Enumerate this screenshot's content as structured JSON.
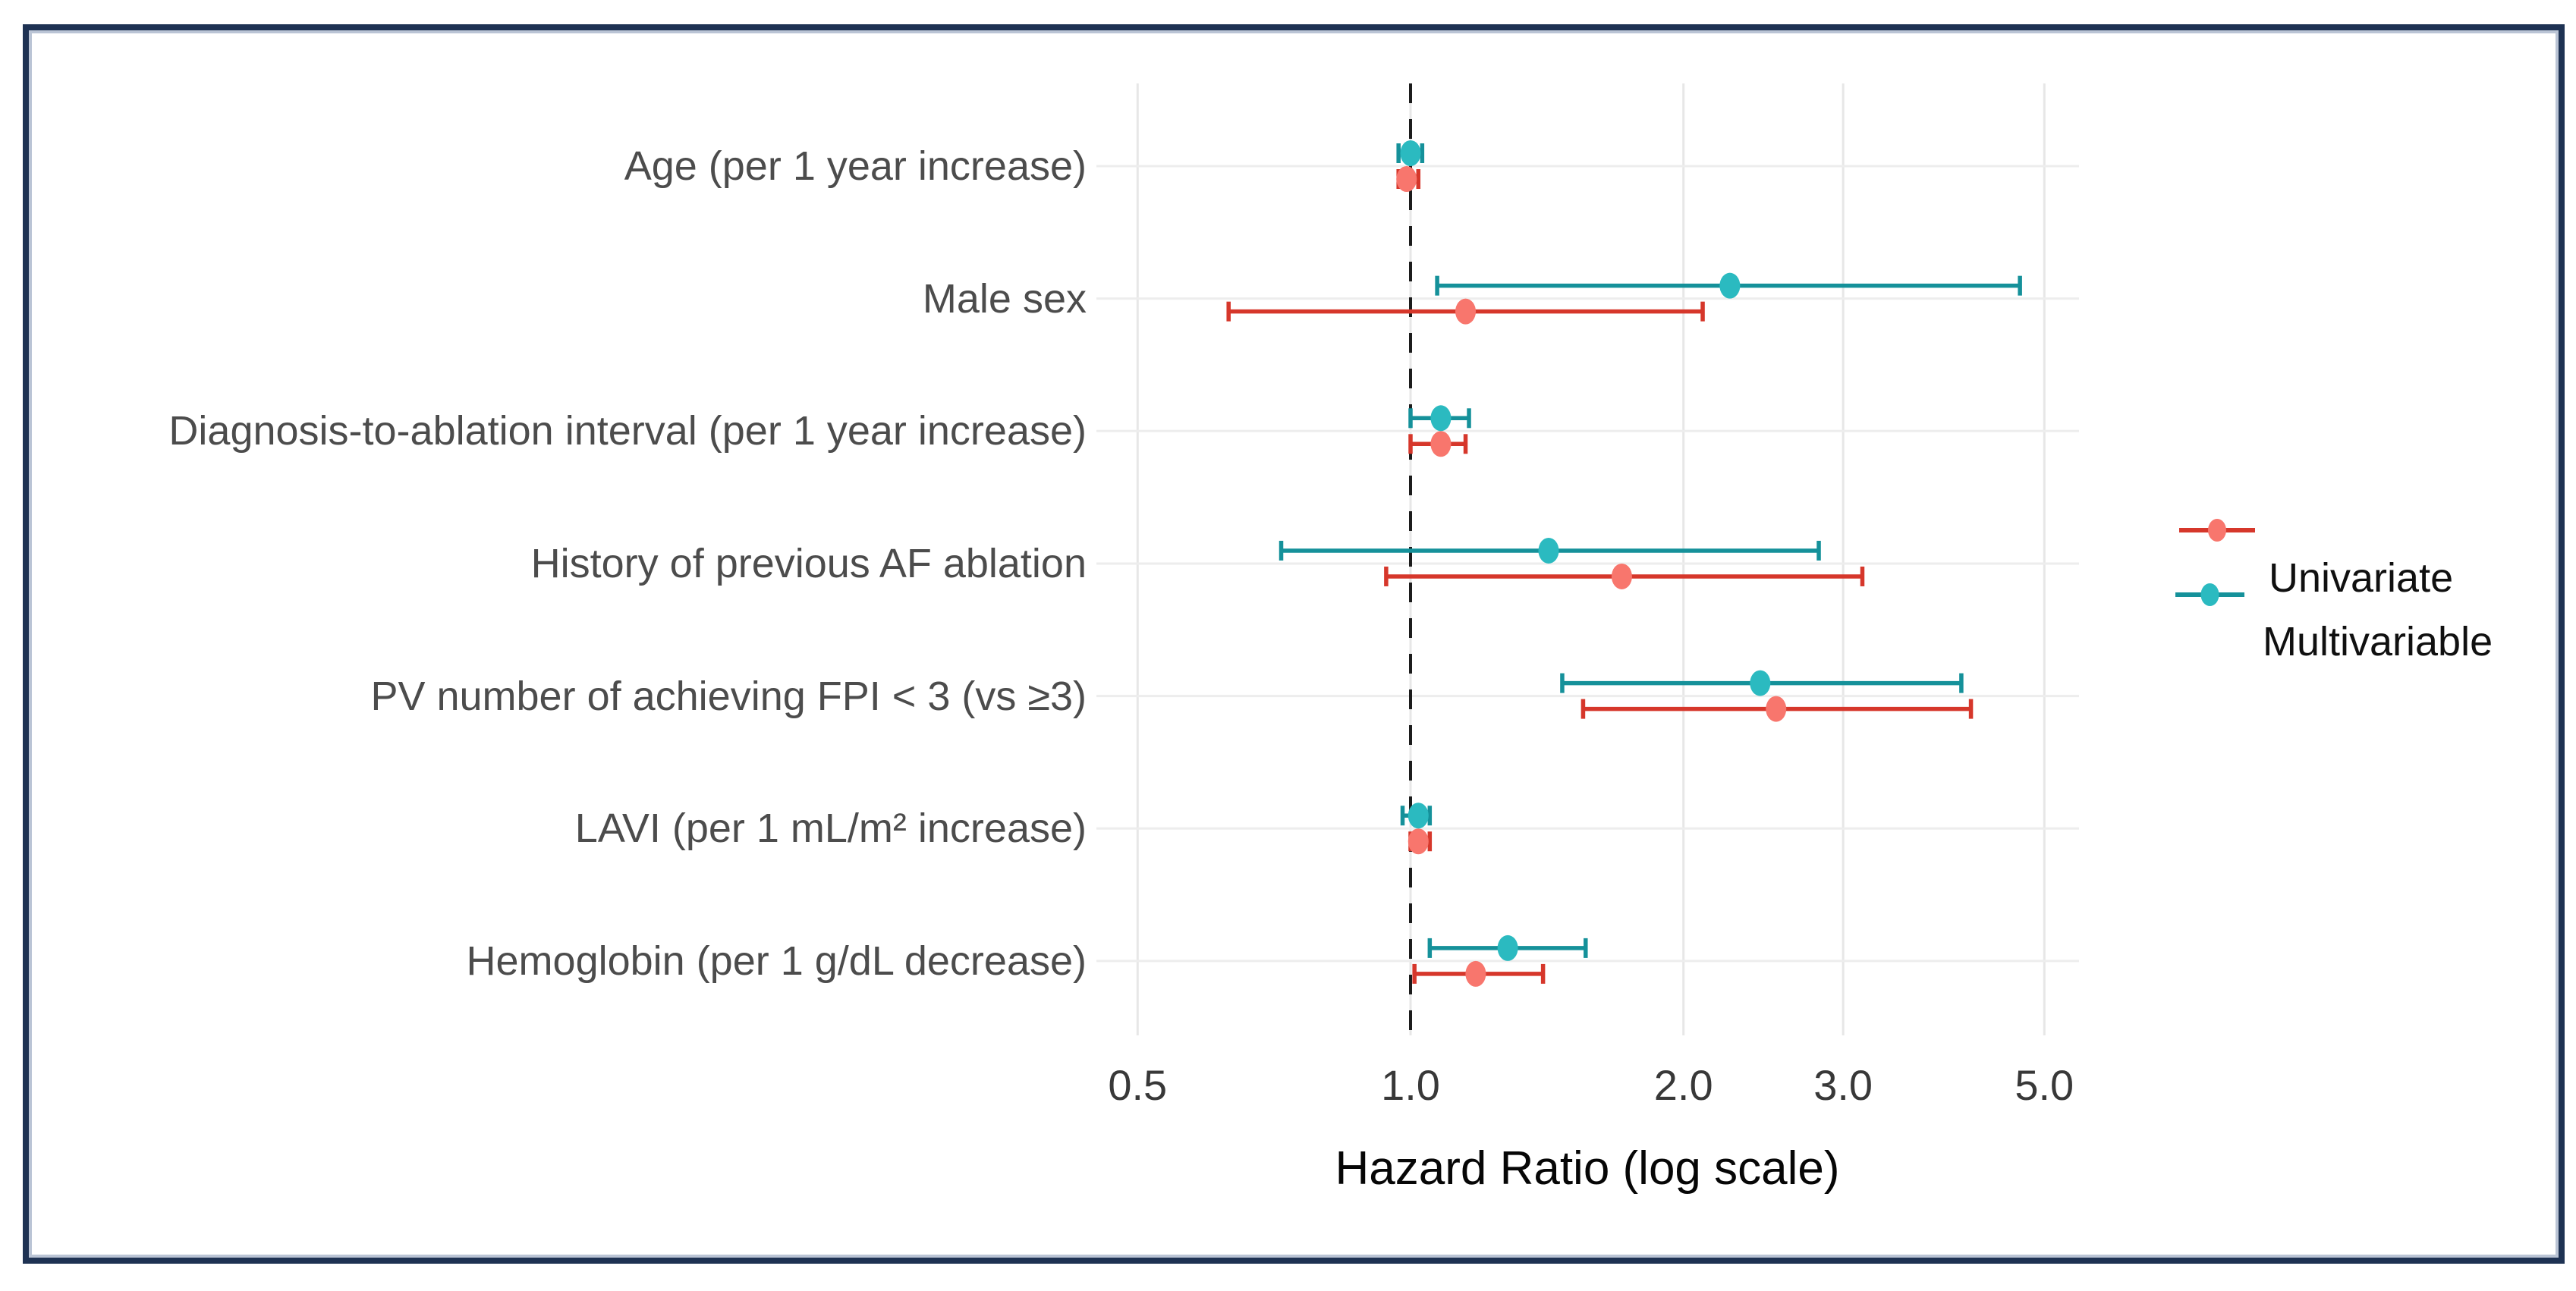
{
  "figure": {
    "background": "#ffffff",
    "border_color": "#1e3253",
    "border_inner_edge_color": "#8294b2"
  },
  "chart_data": {
    "type": "scatter",
    "subtype": "forest-plot-dot-with-ci",
    "title": "",
    "xlabel": "Hazard Ratio (log scale)",
    "ylabel": "",
    "x_scale": "log10",
    "xlim": [
      0.42,
      6.5
    ],
    "x_ticks": [
      0.5,
      1.0,
      2.0,
      3.0,
      5.0
    ],
    "x_tick_labels": [
      "0.5",
      "1.0",
      "2.0",
      "3.0",
      "5.0"
    ],
    "reference_line_x": 1.0,
    "reference_line_style": "dashed-black",
    "grid": true,
    "gridline_color": "#ebebeb",
    "legend_position": "right-outside",
    "categories": [
      "Age (per 1 year increase)",
      "Male sex",
      "Diagnosis-to-ablation interval (per 1 year increase)",
      "History of previous AF ablation",
      "PV number of achieving FPI < 3 (vs ≥3)",
      "LAVI (per 1 mL/m² increase)",
      "Hemoglobin (per 1 g/dL decrease)"
    ],
    "series": [
      {
        "name": "Univariate",
        "line_color": "#d6372b",
        "point_color": "#f8766d",
        "hr": [
          0.99,
          1.15,
          1.08,
          1.71,
          2.53,
          1.02,
          1.18
        ],
        "ci_low": [
          0.97,
          0.63,
          1.0,
          0.94,
          1.55,
          1.0,
          1.01
        ],
        "ci_high": [
          1.02,
          2.1,
          1.15,
          3.15,
          4.15,
          1.05,
          1.4
        ]
      },
      {
        "name": "Multivariable",
        "line_color": "#15919a",
        "point_color": "#2bbac0",
        "hr": [
          1.0,
          2.25,
          1.08,
          1.42,
          2.43,
          1.02,
          1.28
        ],
        "ci_low": [
          0.97,
          1.07,
          1.0,
          0.72,
          1.47,
          0.98,
          1.05
        ],
        "ci_high": [
          1.03,
          4.7,
          1.16,
          2.82,
          4.05,
          1.05,
          1.56
        ]
      }
    ]
  }
}
